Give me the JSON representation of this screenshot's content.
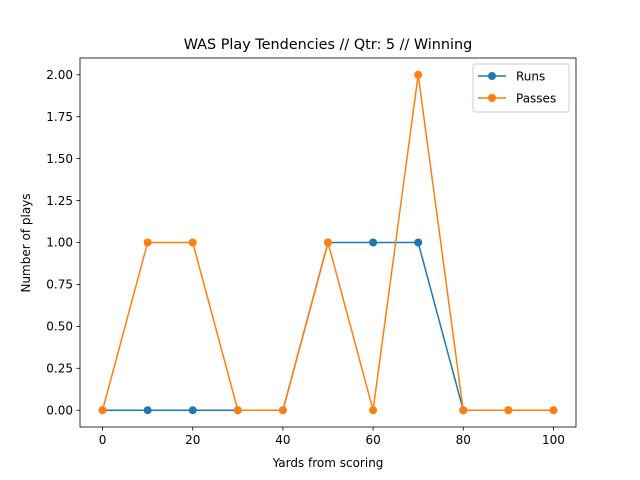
{
  "chart_data": {
    "type": "line",
    "title": "WAS Play Tendencies // Qtr: 5 // Winning",
    "xlabel": "Yards from scoring",
    "ylabel": "Number of plays",
    "x": [
      0,
      10,
      20,
      30,
      40,
      50,
      60,
      70,
      80,
      90,
      100
    ],
    "xlim": [
      -5,
      105
    ],
    "ylim": [
      -0.1,
      2.1
    ],
    "xticks": [
      0,
      20,
      40,
      60,
      80,
      100
    ],
    "xtick_labels": [
      "0",
      "20",
      "40",
      "60",
      "80",
      "100"
    ],
    "yticks": [
      0,
      0.25,
      0.5,
      0.75,
      1.0,
      1.25,
      1.5,
      1.75,
      2.0
    ],
    "ytick_labels": [
      "0.00",
      "0.25",
      "0.50",
      "0.75",
      "1.00",
      "1.25",
      "1.50",
      "1.75",
      "2.00"
    ],
    "grid": false,
    "legend_position": "top-right",
    "series": [
      {
        "name": "Runs",
        "color": "#1f77b4",
        "marker": "circle",
        "values": [
          0,
          0,
          0,
          0,
          0,
          1,
          1,
          1,
          0,
          0,
          0
        ]
      },
      {
        "name": "Passes",
        "color": "#ff7f0e",
        "marker": "circle",
        "values": [
          0,
          1,
          1,
          0,
          0,
          1,
          0,
          2,
          0,
          0,
          0
        ]
      }
    ]
  }
}
